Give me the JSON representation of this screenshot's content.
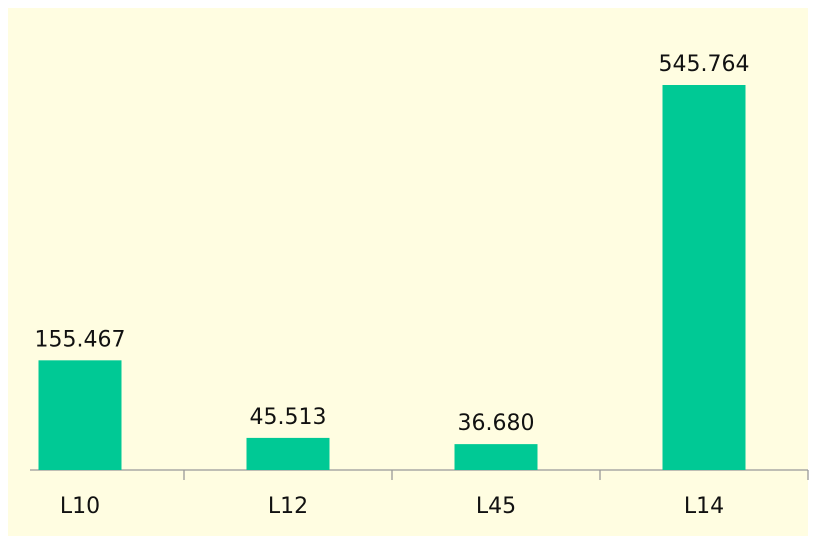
{
  "chart_data": {
    "type": "bar",
    "categories": [
      "L10",
      "L12",
      "L45",
      "L14"
    ],
    "values": [
      155.467,
      45.513,
      36.68,
      545.764
    ],
    "value_labels": [
      "155.467",
      "45.513",
      "36.680",
      "545.764"
    ],
    "color": "#00c995"
  }
}
